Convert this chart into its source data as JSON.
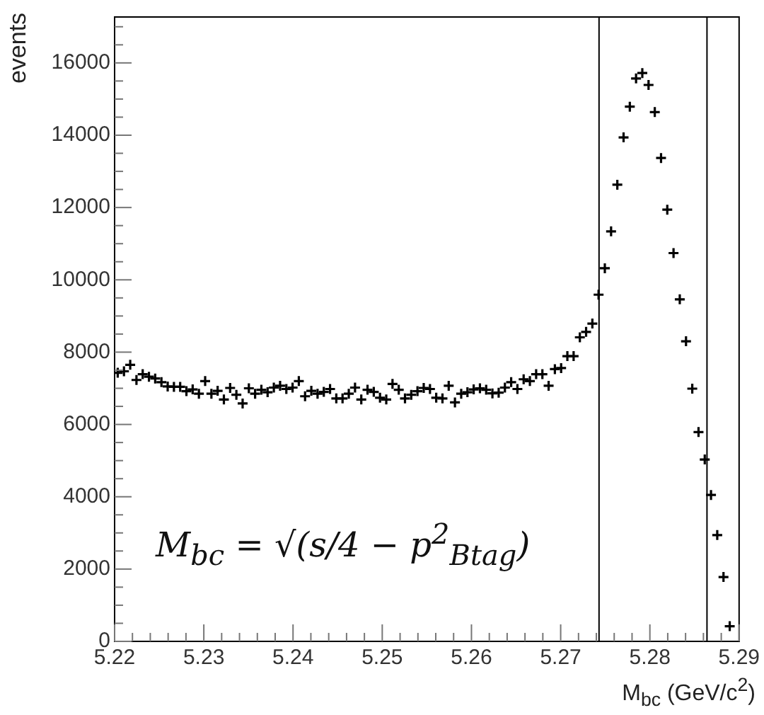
{
  "chart_data": {
    "type": "scatter",
    "xlabel": "M$_{bc}$ (GeV/c$^{2}$)",
    "ylabel": "events",
    "marker": "cross",
    "grid": false,
    "legend": false,
    "annotations": [
      "M$_{bc}$ = √(s/4 − p$^{2}$$_{Btag}$)"
    ],
    "xlim": [
      5.22,
      5.29
    ],
    "ylim": [
      0,
      17270
    ],
    "xticks": [
      5.22,
      {
        "value": 5.222,
        "label": null
      },
      {
        "value": 5.224,
        "label": null
      },
      {
        "value": 5.226,
        "label": null
      },
      {
        "value": 5.228,
        "label": null
      },
      5.23,
      {
        "value": 5.232,
        "label": null
      },
      {
        "value": 5.234,
        "label": null
      },
      {
        "value": 5.236,
        "label": null
      },
      {
        "value": 5.238,
        "label": null
      },
      5.24,
      {
        "value": 5.242,
        "label": null
      },
      {
        "value": 5.244,
        "label": null
      },
      {
        "value": 5.246,
        "label": null
      },
      {
        "value": 5.248,
        "label": null
      },
      5.25,
      {
        "value": 5.252,
        "label": null
      },
      {
        "value": 5.254,
        "label": null
      },
      {
        "value": 5.256,
        "label": null
      },
      {
        "value": 5.258,
        "label": null
      },
      5.26,
      {
        "value": 5.262,
        "label": null
      },
      {
        "value": 5.264,
        "label": null
      },
      {
        "value": 5.266,
        "label": null
      },
      {
        "value": 5.268,
        "label": null
      },
      5.27,
      {
        "value": 5.272,
        "label": null
      },
      {
        "value": 5.274,
        "label": null
      },
      {
        "value": 5.276,
        "label": null
      },
      {
        "value": 5.278,
        "label": null
      },
      5.28,
      {
        "value": 5.282,
        "label": null
      },
      {
        "value": 5.284,
        "label": null
      },
      {
        "value": 5.286,
        "label": null
      },
      {
        "value": 5.288,
        "label": null
      },
      5.29
    ],
    "yticks": [
      0,
      {
        "value": 500,
        "label": null
      },
      {
        "value": 1000,
        "label": null
      },
      {
        "value": 1500,
        "label": null
      },
      2000,
      {
        "value": 2500,
        "label": null
      },
      {
        "value": 3000,
        "label": null
      },
      {
        "value": 3500,
        "label": null
      },
      4000,
      {
        "value": 4500,
        "label": null
      },
      {
        "value": 5000,
        "label": null
      },
      {
        "value": 5500,
        "label": null
      },
      6000,
      {
        "value": 6500,
        "label": null
      },
      {
        "value": 7000,
        "label": null
      },
      {
        "value": 7500,
        "label": null
      },
      8000,
      {
        "value": 8500,
        "label": null
      },
      {
        "value": 9000,
        "label": null
      },
      {
        "value": 9500,
        "label": null
      },
      10000,
      {
        "value": 10500,
        "label": null
      },
      {
        "value": 11000,
        "label": null
      },
      {
        "value": 11500,
        "label": null
      },
      12000,
      {
        "value": 12500,
        "label": null
      },
      {
        "value": 13000,
        "label": null
      },
      {
        "value": 13500,
        "label": null
      },
      14000,
      {
        "value": 14500,
        "label": null
      },
      {
        "value": 15000,
        "label": null
      },
      {
        "value": 15500,
        "label": null
      },
      16000,
      {
        "value": 16500,
        "label": null
      },
      {
        "value": 17000,
        "label": null
      }
    ],
    "ref_lines": [
      {
        "axis": "x",
        "value": 5.2743,
        "color": "#000000"
      },
      {
        "axis": "x",
        "value": 5.2864,
        "color": "#000000"
      }
    ],
    "series": [
      {
        "color": "#000000",
        "x": [
          5.22035,
          5.22105,
          5.22175,
          5.22245,
          5.22315,
          5.22385,
          5.22455,
          5.22525,
          5.22595,
          5.22665,
          5.22735,
          5.22805,
          5.22875,
          5.22945,
          5.23015,
          5.23085,
          5.23155,
          5.23225,
          5.23295,
          5.23365,
          5.23435,
          5.23505,
          5.23575,
          5.23645,
          5.23715,
          5.23785,
          5.23855,
          5.23925,
          5.23995,
          5.24065,
          5.24135,
          5.24205,
          5.24275,
          5.24345,
          5.24415,
          5.24485,
          5.24555,
          5.24625,
          5.24695,
          5.24765,
          5.24835,
          5.24905,
          5.24975,
          5.25045,
          5.25115,
          5.25185,
          5.25255,
          5.25325,
          5.25395,
          5.25465,
          5.25535,
          5.25605,
          5.25675,
          5.25745,
          5.25815,
          5.25885,
          5.25955,
          5.26025,
          5.26095,
          5.26165,
          5.26235,
          5.26305,
          5.26375,
          5.26445,
          5.26515,
          5.26585,
          5.26655,
          5.26725,
          5.26795,
          5.26865,
          5.26935,
          5.27005,
          5.27075,
          5.27145,
          5.27215,
          5.27285,
          5.27355,
          5.27425,
          5.27495,
          5.27565,
          5.27635,
          5.27705,
          5.27775,
          5.27845,
          5.27915,
          5.27985,
          5.28055,
          5.28125,
          5.28195,
          5.28265,
          5.28335,
          5.28405,
          5.28475,
          5.28545,
          5.28615,
          5.28685,
          5.28755,
          5.28825,
          5.28895
        ],
        "values": [
          7430,
          7470,
          7650,
          7230,
          7390,
          7320,
          7270,
          7170,
          7050,
          7040,
          7040,
          6920,
          6970,
          6850,
          7200,
          6850,
          6930,
          6690,
          7010,
          6820,
          6580,
          7000,
          6850,
          6960,
          6890,
          7020,
          7070,
          6980,
          7020,
          7200,
          6780,
          6930,
          6850,
          6900,
          6980,
          6720,
          6720,
          6850,
          7020,
          6690,
          6960,
          6900,
          6740,
          6690,
          7120,
          6960,
          6720,
          6820,
          6920,
          7010,
          6980,
          6740,
          6720,
          7070,
          6610,
          6850,
          6890,
          6970,
          7000,
          6960,
          6860,
          6880,
          7020,
          7170,
          6980,
          7250,
          7200,
          7390,
          7390,
          7070,
          7530,
          7560,
          7890,
          7890,
          8410,
          8560,
          8790,
          9590,
          10320,
          11340,
          12630,
          13940,
          14790,
          15570,
          15720,
          15390,
          14640,
          13370,
          11940,
          10740,
          9460,
          8300,
          6990,
          5790,
          5030,
          4050,
          2940,
          1780,
          420
        ]
      }
    ]
  }
}
